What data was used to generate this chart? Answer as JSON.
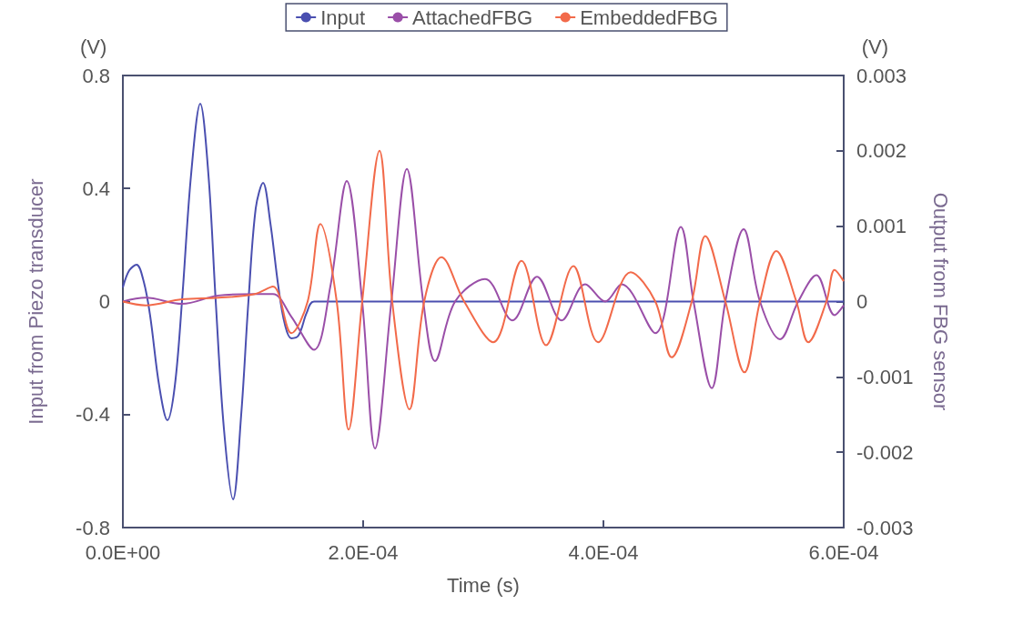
{
  "chart_data": {
    "type": "line",
    "xlabel": "Time (s)",
    "ylabel": "Input from Piezo transducer",
    "y2label": "Output from FBG sensor",
    "annotations": [
      "(V)",
      "(V)"
    ],
    "xlim": [
      0,
      0.0006
    ],
    "xticks": [
      {
        "value": 0,
        "label": "0.0E+00"
      },
      {
        "value": 0.0002,
        "label": "2.0E-04"
      },
      {
        "value": 0.0004,
        "label": "4.0E-04"
      },
      {
        "value": 0.0006,
        "label": "6.0E-04"
      }
    ],
    "ylim": [
      -0.8,
      0.8
    ],
    "yticks": [
      -0.8,
      -0.4,
      0,
      0.4,
      0.8
    ],
    "y2lim": [
      -0.003,
      0.003
    ],
    "y2ticks": [
      -0.003,
      -0.002,
      -0.001,
      0,
      0.001,
      0.002,
      0.003
    ],
    "legend": "top",
    "grid": false,
    "marker": "none",
    "line_style": "solid",
    "series": [
      {
        "name": "Input",
        "color": "#4a4fb0",
        "x": [
          0,
          5.3e-06,
          1.14e-05,
          1.74e-05,
          2.27e-05,
          3.03e-05,
          3.71e-05,
          4.32e-05,
          4.92e-05,
          5.68e-05,
          6.44e-05,
          7.12e-05,
          7.73e-05,
          8.41e-05,
          9.17e-05,
          9.85e-05,
          0.0001045,
          0.0001106,
          0.0001167,
          0.0001227,
          0.0001295,
          0.0001348,
          0.0001402,
          0.0001462,
          0.000153,
          0.0001591,
          0.0006
        ],
        "values": [
          0.05,
          0.11,
          0.13,
          0.07,
          -0.05,
          -0.3,
          -0.42,
          -0.3,
          0,
          0.45,
          0.7,
          0.45,
          0,
          -0.45,
          -0.7,
          -0.4,
          0,
          0.33,
          0.42,
          0.28,
          0.05,
          -0.08,
          -0.13,
          -0.12,
          -0.04,
          0,
          0
        ]
      },
      {
        "name": "AttachedFBG",
        "color": "#9a4fa8",
        "axis": "y2",
        "x": [
          0,
          1.89e-05,
          4.92e-05,
          7.95e-05,
          0.0001098,
          0.0001249,
          0.0001402,
          0.0001591,
          0.0001727,
          0.0001864,
          0.0001992,
          0.0002099,
          0.0002235,
          0.0002364,
          0.00025,
          0.0002598,
          0.0002765,
          0.0003015,
          0.0003242,
          0.0003447,
          0.0003652,
          0.0003848,
          0.0004015,
          0.0004152,
          0.0004432,
          0.0004644,
          0.000475,
          0.0004902,
          0.0005015,
          0.0005167,
          0.0005303,
          0.000547,
          0.0005621,
          0.0005773,
          0.0005924,
          0.0006
        ],
        "values": [
          0,
          5e-05,
          -3e-05,
          8e-05,
          0.0001,
          0.0001,
          -0.0002,
          -0.00064,
          0.0002,
          0.0016,
          0,
          -0.00195,
          0,
          0.00176,
          0,
          -0.00079,
          0,
          0.0003,
          -0.00025,
          0.00033,
          -0.00025,
          0.00023,
          0,
          0.00023,
          -0.00042,
          0.00099,
          0,
          -0.00115,
          0,
          0.00096,
          0,
          -0.0005,
          0,
          0.00035,
          -0.00018,
          -5e-05
        ]
      },
      {
        "name": "EmbeddedFBG",
        "color": "#f26a4a",
        "axis": "y2",
        "x": [
          0,
          1.89e-05,
          4.92e-05,
          7.95e-05,
          0.0001098,
          0.0001249,
          0.0001402,
          0.0001538,
          0.0001644,
          0.000178,
          0.0001879,
          0.0001992,
          0.0002136,
          0.0002242,
          0.0002386,
          0.0002508,
          0.0002652,
          0.0002841,
          0.0003083,
          0.0003318,
          0.0003523,
          0.000375,
          0.0003955,
          0.0004227,
          0.0004432,
          0.0004568,
          0.0004735,
          0.0004848,
          0.0005015,
          0.0005174,
          0.0005303,
          0.0005439,
          0.0005606,
          0.0005705,
          0.0005856,
          0.0005924,
          0.0006
        ],
        "values": [
          0,
          -5e-05,
          3e-05,
          5e-05,
          0.0001,
          0.0002,
          -0.00042,
          0,
          0.00103,
          0,
          -0.0017,
          0,
          0.002,
          0,
          -0.00143,
          0,
          0.00059,
          0,
          -0.00054,
          0.00054,
          -0.00058,
          0.00047,
          -0.00054,
          0.00039,
          0,
          -0.00074,
          0,
          0.00087,
          0,
          -0.00094,
          0,
          0.00067,
          0,
          -0.00054,
          0,
          0.00042,
          0.00027
        ]
      }
    ]
  }
}
